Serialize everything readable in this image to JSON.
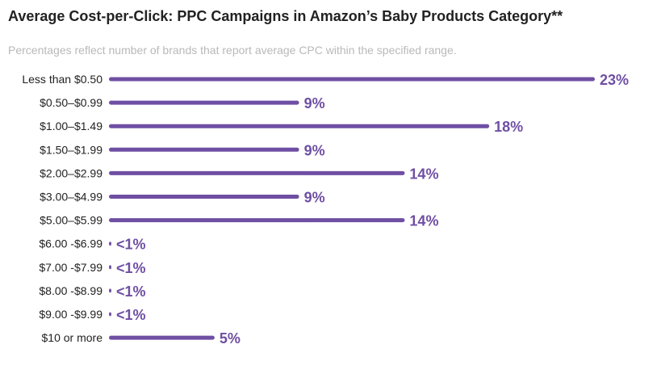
{
  "chart_data": {
    "type": "bar",
    "orientation": "horizontal",
    "title": "Average Cost-per-Click: PPC Campaigns in Amazon’s Baby Products Category**",
    "subtitle": "Percentages reflect number of brands that report average CPC within the specified range.",
    "categories": [
      "Less than $0.50",
      "$0.50–$0.99",
      "$1.00–$1.49",
      "$1.50–$1.99",
      "$2.00–$2.99",
      "$3.00–$4.99",
      "$5.00–$5.99",
      "$6.00 -$6.99",
      "$7.00 -$7.99",
      "$8.00 -$8.99",
      "$9.00 -$9.99",
      "$10 or more"
    ],
    "values": [
      23,
      9,
      18,
      9,
      14,
      9,
      14,
      0.1,
      0.1,
      0.1,
      0.1,
      5
    ],
    "value_labels": [
      "23%",
      "9%",
      "18%",
      "9%",
      "14%",
      "9%",
      "14%",
      "<1%",
      "<1%",
      "<1%",
      "<1%",
      "5%"
    ],
    "xlim": [
      0,
      23
    ],
    "unit": "%",
    "bar_color": "#6f4fa3",
    "label_color": "#6f4fa3"
  }
}
